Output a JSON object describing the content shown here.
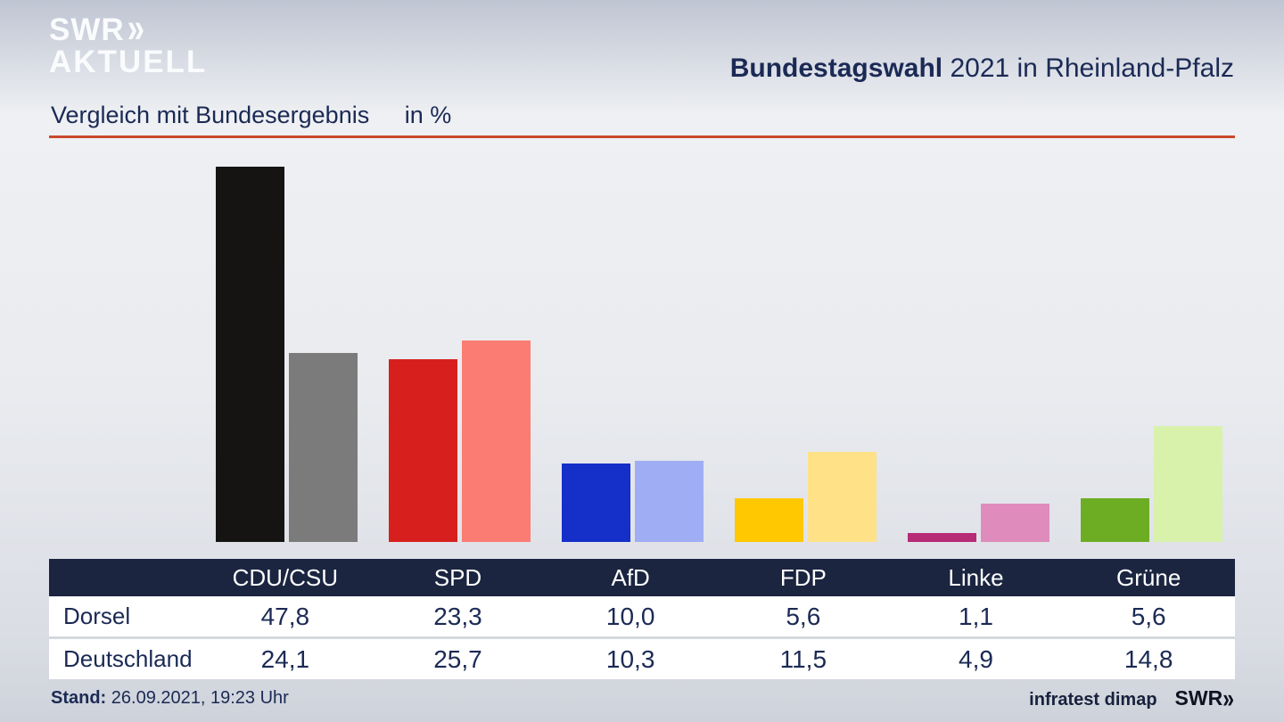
{
  "header": {
    "logo_line1": "SWR",
    "logo_chevrons": "»",
    "logo_line2": "AKTUELL",
    "title_bold": "Bundestagswahl",
    "title_rest": " 2021 in Rheinland-Pfalz"
  },
  "subtitle": {
    "text": "Vergleich mit Bundesergebnis",
    "unit": "in %"
  },
  "chart_data": {
    "type": "bar",
    "title": "Vergleich mit Bundesergebnis in %",
    "categories": [
      "CDU/CSU",
      "SPD",
      "AfD",
      "FDP",
      "Linke",
      "Grüne"
    ],
    "series": [
      {
        "name": "Dorsel",
        "values": [
          47.8,
          23.3,
          10.0,
          5.6,
          1.1,
          5.6
        ],
        "colors": [
          "#161413",
          "#d7201d",
          "#1430c8",
          "#ffc800",
          "#b62a76",
          "#6cad23"
        ]
      },
      {
        "name": "Deutschland",
        "values": [
          24.1,
          25.7,
          10.3,
          11.5,
          4.9,
          14.8
        ],
        "colors": [
          "#7b7b7b",
          "#fb7c72",
          "#9fadf4",
          "#ffe187",
          "#df8cbd",
          "#d8f2ac"
        ]
      }
    ],
    "ylabel": "%",
    "ylim": [
      0,
      50
    ],
    "grid": false,
    "legend_position": "table-rows"
  },
  "table": {
    "header": [
      "CDU/CSU",
      "SPD",
      "AfD",
      "FDP",
      "Linke",
      "Grüne"
    ],
    "rows": [
      {
        "label": "Dorsel",
        "values": [
          "47,8",
          "23,3",
          "10,0",
          "5,6",
          "1,1",
          "5,6"
        ]
      },
      {
        "label": "Deutschland",
        "values": [
          "24,1",
          "25,7",
          "10,3",
          "11,5",
          "4,9",
          "14,8"
        ]
      }
    ]
  },
  "footer": {
    "stand_label": "Stand:",
    "stand_value": " 26.09.2021, 19:23 Uhr",
    "source": "infratest dimap",
    "logo_text": "SWR",
    "logo_chevrons": "»"
  },
  "colors": {
    "accent_rule": "#c9492b",
    "table_header_bg": "#1b2540",
    "text": "#1b2a55"
  }
}
